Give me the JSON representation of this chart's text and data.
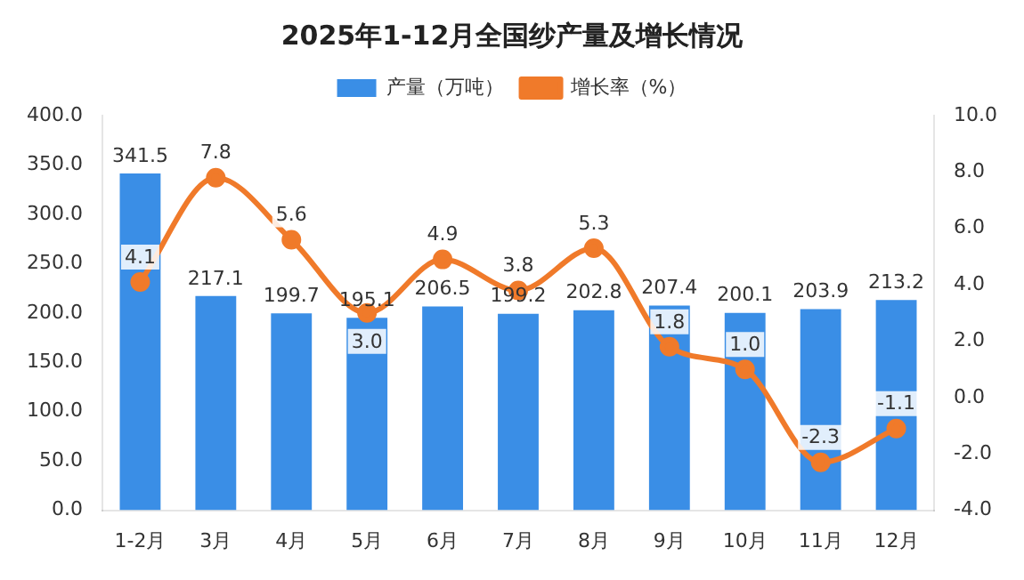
{
  "chart_data": {
    "type": "bar",
    "title": "2025年1-12月全国纱产量及增长情况",
    "categories": [
      "1-2月",
      "3月",
      "4月",
      "5月",
      "6月",
      "7月",
      "8月",
      "9月",
      "10月",
      "11月",
      "12月"
    ],
    "series": [
      {
        "name": "产量（万吨）",
        "color": "#3a8ee6",
        "values": [
          341.5,
          217.1,
          199.7,
          195.1,
          206.5,
          199.2,
          202.8,
          207.4,
          200.1,
          203.9,
          213.2
        ],
        "value_labels": [
          "341.5",
          "217.1",
          "199.7",
          "195.1",
          "206.5",
          "199.2",
          "202.8",
          "207.4",
          "200.1",
          "203.9",
          "213.2"
        ]
      },
      {
        "name": "增长率（%）",
        "type": "line",
        "axis": "y2",
        "color": "#f07a2a",
        "marker": "circle",
        "values": [
          4.1,
          7.8,
          5.6,
          3.0,
          4.9,
          3.8,
          5.3,
          1.8,
          1.0,
          -2.3,
          -1.1
        ],
        "value_labels": [
          "4.1",
          "7.8",
          "5.6",
          "3.0",
          "4.9",
          "3.8",
          "5.3",
          "1.8",
          "1.0",
          "-2.3",
          "-1.1"
        ]
      }
    ],
    "ylim": [
      0,
      400
    ],
    "yticks": [
      {
        "value": 0,
        "label": "0.0"
      },
      {
        "value": 50,
        "label": "50.0"
      },
      {
        "value": 100,
        "label": "100.0"
      },
      {
        "value": 150,
        "label": "150.0"
      },
      {
        "value": 200,
        "label": "200.0"
      },
      {
        "value": 250,
        "label": "250.0"
      },
      {
        "value": 300,
        "label": "300.0"
      },
      {
        "value": 350,
        "label": "350.0"
      },
      {
        "value": 400,
        "label": "400.0"
      }
    ],
    "y2lim": [
      -4,
      10
    ],
    "y2ticks": [
      {
        "value": -4,
        "label": "-4.0"
      },
      {
        "value": -2,
        "label": "-2.0"
      },
      {
        "value": 0,
        "label": "0.0"
      },
      {
        "value": 2,
        "label": "2.0"
      },
      {
        "value": 4,
        "label": "4.0"
      },
      {
        "value": 6,
        "label": "6.0"
      },
      {
        "value": 8,
        "label": "8.0"
      },
      {
        "value": 10,
        "label": "10.0"
      }
    ],
    "grid": false,
    "legend": "top"
  }
}
